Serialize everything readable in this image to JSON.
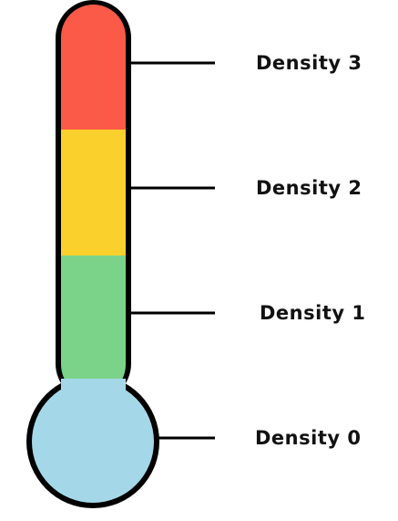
{
  "levels": [
    {
      "label": "Density 3",
      "color": "#FA5A47"
    },
    {
      "label": "Density 2",
      "color": "#FAD02C"
    },
    {
      "label": "Density 1",
      "color": "#7BD389"
    },
    {
      "label": "Density 0",
      "color": "#A4D8E8"
    }
  ],
  "outline_color": "#000000"
}
